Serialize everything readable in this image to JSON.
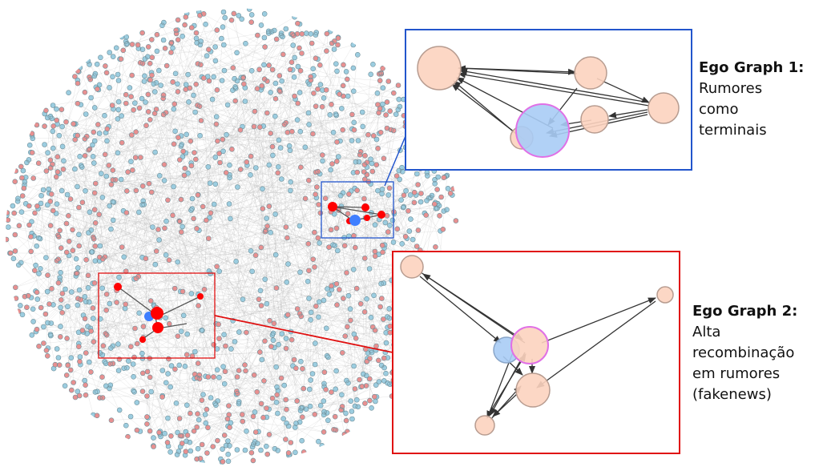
{
  "colors": {
    "background": "#ffffff",
    "edge_gray": "#b5b5b5",
    "node_red_fill": "#e89090",
    "node_blue_fill": "#9ccde0",
    "node_stroke": "#6f8f99",
    "highlight_red": "#ff0000",
    "highlight_blue": "#3f7fff",
    "inset1_border": "#2255cc",
    "inset2_border": "#e01010",
    "peach_fill": "#fcd3bf",
    "peach_stroke": "#b79c90",
    "ego_blue_fill": "#a9ccf5",
    "ego_pink_stroke": "#e070e6",
    "arrow": "#333333"
  },
  "ego_graph_1": {
    "title": "Ego Graph 1:",
    "lines": [
      "Rumores",
      "como",
      "terminais"
    ]
  },
  "ego_graph_2": {
    "title": "Ego Graph 2:",
    "lines": [
      "Alta",
      "recombinação",
      "em rumores",
      "(fakenews)"
    ]
  }
}
